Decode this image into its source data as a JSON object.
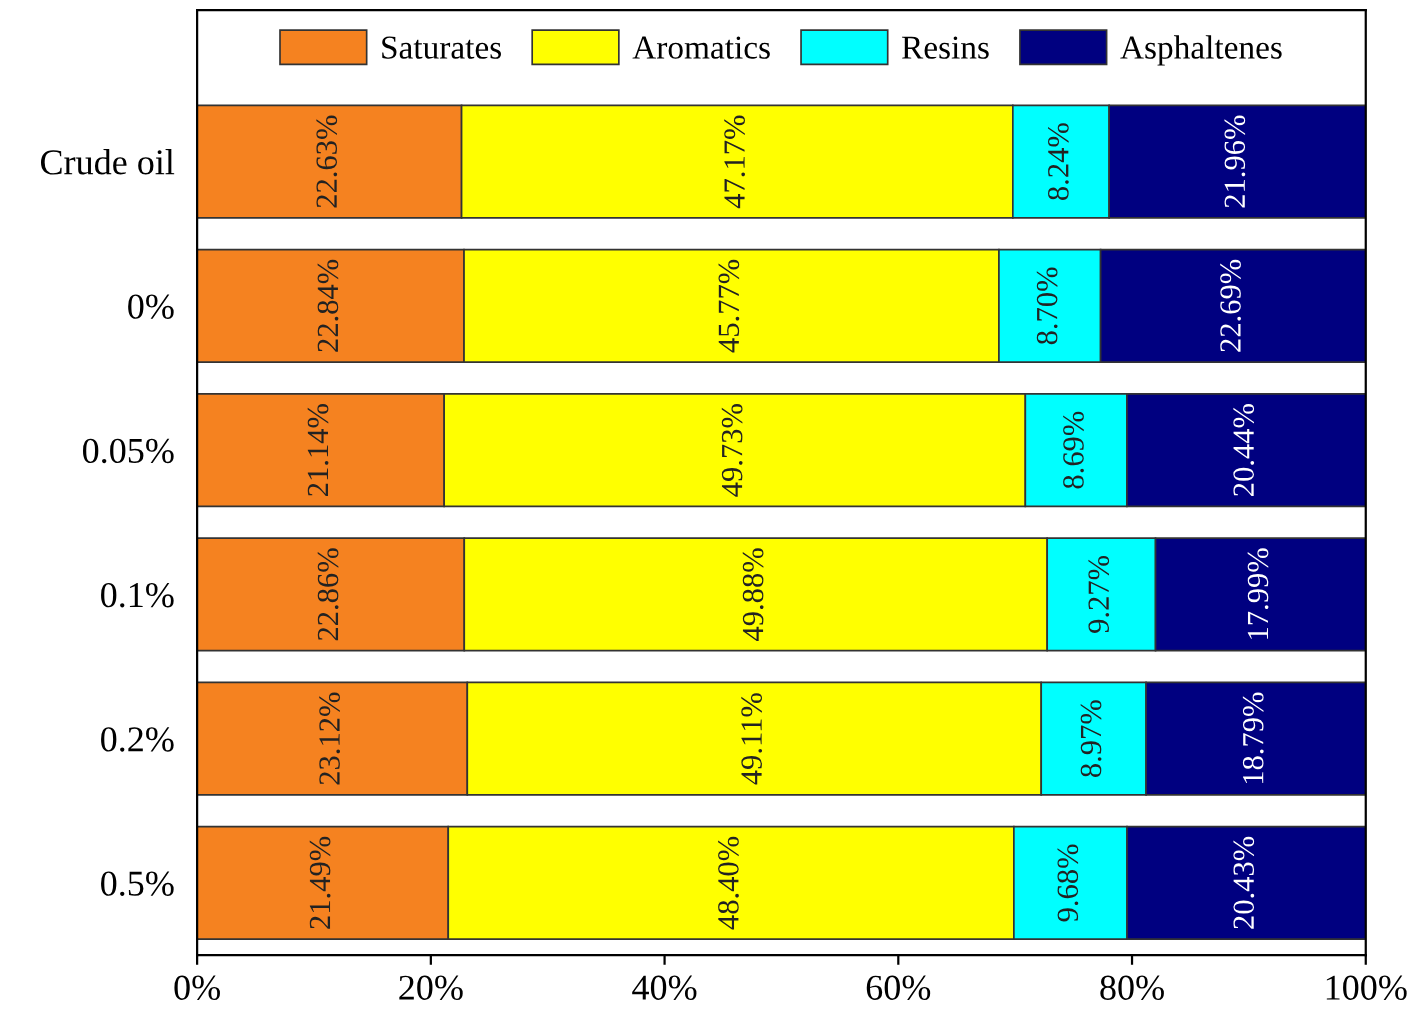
{
  "chart_data": {
    "type": "bar",
    "orientation": "horizontal",
    "stacked": true,
    "categories": [
      "Crude oil",
      "0%",
      "0.05%",
      "0.1%",
      "0.2%",
      "0.5%"
    ],
    "series": [
      {
        "name": "Saturates",
        "color": "#f58220",
        "values": [
          22.63,
          22.84,
          21.14,
          22.86,
          23.12,
          21.49
        ],
        "value_labels": [
          "22.63%",
          "22.84%",
          "21.14%",
          "22.86%",
          "23.12%",
          "21.49%"
        ]
      },
      {
        "name": "Aromatics",
        "color": "#ffff00",
        "values": [
          47.17,
          45.77,
          49.73,
          49.88,
          49.11,
          48.4
        ],
        "value_labels": [
          "47.17%",
          "45.77%",
          "49.73%",
          "49.88%",
          "49.11%",
          "48.40%"
        ]
      },
      {
        "name": "Resins",
        "color": "#00ffff",
        "values": [
          8.24,
          8.7,
          8.69,
          9.27,
          8.97,
          9.68
        ],
        "value_labels": [
          "8.24%",
          "8.70%",
          "8.69%",
          "9.27%",
          "8.97%",
          "9.68%"
        ]
      },
      {
        "name": "Asphaltenes",
        "color": "#000080",
        "values": [
          21.96,
          22.69,
          20.44,
          17.99,
          18.79,
          20.43
        ],
        "value_labels": [
          "21.96%",
          "22.69%",
          "20.44%",
          "17.99%",
          "18.79%",
          "20.43%"
        ]
      }
    ],
    "xlim": [
      0,
      100
    ],
    "xticks": [
      {
        "value": 0,
        "label": "0%"
      },
      {
        "value": 20,
        "label": "20%"
      },
      {
        "value": 40,
        "label": "40%"
      },
      {
        "value": 60,
        "label": "60%"
      },
      {
        "value": 80,
        "label": "80%"
      },
      {
        "value": 100,
        "label": "100%"
      }
    ],
    "legend": "top",
    "grid": false
  }
}
